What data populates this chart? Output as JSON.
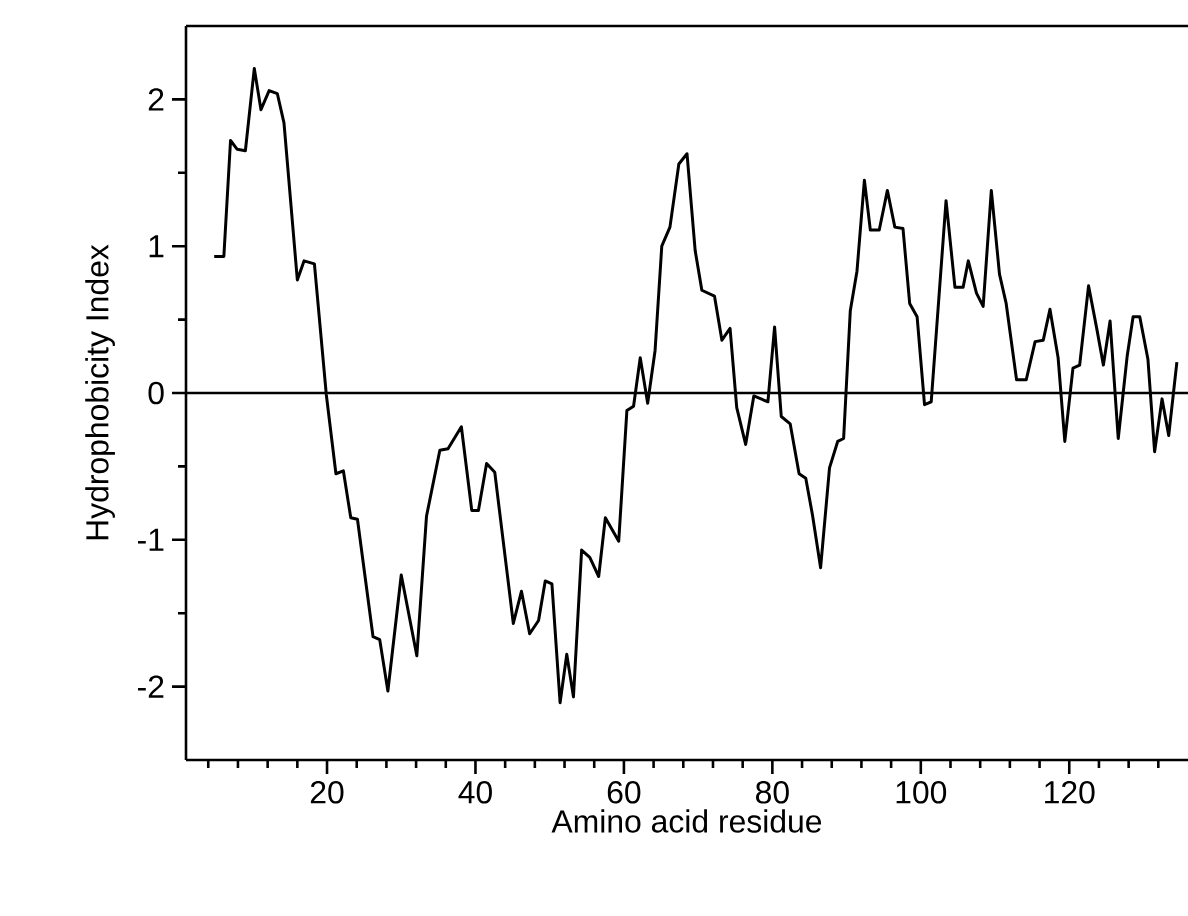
{
  "chart_data": {
    "type": "line",
    "xlabel": "Amino acid residue",
    "ylabel": "Hydrophobicity Index",
    "x": [
      4.8,
      6.1,
      7.0,
      7.9,
      9.0,
      10.2,
      11.1,
      12.2,
      13.3,
      14.2,
      16.0,
      16.9,
      18.3,
      19.9,
      21.2,
      22.2,
      23.2,
      24.1,
      26.2,
      27.1,
      28.2,
      30.0,
      32.1,
      33.4,
      35.2,
      36.3,
      38.1,
      39.5,
      40.4,
      41.5,
      42.6,
      45.1,
      46.2,
      47.3,
      48.5,
      49.4,
      50.3,
      51.4,
      52.3,
      53.2,
      54.3,
      55.4,
      56.6,
      57.5,
      59.3,
      60.4,
      61.3,
      62.2,
      63.2,
      64.2,
      65.1,
      66.2,
      67.4,
      68.5,
      69.6,
      70.5,
      72.2,
      73.2,
      74.3,
      75.2,
      76.4,
      77.5,
      79.4,
      80.3,
      81.2,
      82.4,
      83.6,
      84.5,
      85.4,
      86.5,
      87.7,
      88.8,
      89.6,
      90.5,
      91.4,
      92.4,
      93.2,
      94.4,
      95.5,
      96.5,
      97.6,
      98.5,
      99.5,
      100.5,
      101.4,
      103.4,
      104.6,
      105.7,
      106.4,
      107.5,
      108.4,
      109.5,
      110.6,
      111.5,
      112.9,
      114.2,
      115.4,
      116.5,
      117.4,
      118.5,
      119.4,
      120.5,
      121.4,
      122.6,
      123.7,
      124.6,
      125.5,
      126.6,
      127.8,
      128.6,
      129.5,
      130.6,
      131.5,
      132.5,
      133.4,
      134.5
    ],
    "series": [
      {
        "color": "#000000",
        "values": [
          0.93,
          0.93,
          1.72,
          1.66,
          1.65,
          2.21,
          1.93,
          2.06,
          2.04,
          1.84,
          0.77,
          0.9,
          0.88,
          -0.01,
          -0.55,
          -0.53,
          -0.85,
          -0.86,
          -1.66,
          -1.68,
          -2.03,
          -1.24,
          -1.79,
          -0.84,
          -0.39,
          -0.38,
          -0.23,
          -0.8,
          -0.8,
          -0.48,
          -0.54,
          -1.57,
          -1.35,
          -1.64,
          -1.55,
          -1.28,
          -1.3,
          -2.11,
          -1.78,
          -2.07,
          -1.07,
          -1.12,
          -1.25,
          -0.85,
          -1.01,
          -0.12,
          -0.09,
          0.24,
          -0.07,
          0.29,
          1.0,
          1.13,
          1.56,
          1.63,
          0.97,
          0.7,
          0.66,
          0.36,
          0.44,
          -0.1,
          -0.35,
          -0.02,
          -0.06,
          0.45,
          -0.16,
          -0.21,
          -0.55,
          -0.58,
          -0.83,
          -1.19,
          -0.51,
          -0.33,
          -0.31,
          0.56,
          0.83,
          1.45,
          1.11,
          1.11,
          1.38,
          1.13,
          1.12,
          0.61,
          0.52,
          -0.08,
          -0.06,
          1.31,
          0.72,
          0.72,
          0.9,
          0.68,
          0.59,
          1.38,
          0.81,
          0.61,
          0.09,
          0.09,
          0.35,
          0.36,
          0.57,
          0.24,
          -0.33,
          0.17,
          0.19,
          0.73,
          0.44,
          0.19,
          0.49,
          -0.31,
          0.25,
          0.52,
          0.52,
          0.23,
          -0.4,
          -0.04,
          -0.29,
          0.21
        ]
      }
    ],
    "xlim": [
      1,
      136
    ],
    "ylim": [
      -2.5,
      2.5
    ],
    "xticks": [
      {
        "value": 4,
        "label": null
      },
      {
        "value": 8,
        "label": null
      },
      {
        "value": 12,
        "label": null
      },
      {
        "value": 16,
        "label": null
      },
      20,
      {
        "value": 24,
        "label": null
      },
      {
        "value": 28,
        "label": null
      },
      {
        "value": 32,
        "label": null
      },
      {
        "value": 36,
        "label": null
      },
      40,
      {
        "value": 44,
        "label": null
      },
      {
        "value": 48,
        "label": null
      },
      {
        "value": 52,
        "label": null
      },
      {
        "value": 56,
        "label": null
      },
      60,
      {
        "value": 64,
        "label": null
      },
      {
        "value": 68,
        "label": null
      },
      {
        "value": 72,
        "label": null
      },
      {
        "value": 76,
        "label": null
      },
      80,
      {
        "value": 84,
        "label": null
      },
      {
        "value": 88,
        "label": null
      },
      {
        "value": 92,
        "label": null
      },
      {
        "value": 96,
        "label": null
      },
      100,
      {
        "value": 104,
        "label": null
      },
      {
        "value": 108,
        "label": null
      },
      {
        "value": 112,
        "label": null
      },
      {
        "value": 116,
        "label": null
      },
      120,
      {
        "value": 124,
        "label": null
      },
      {
        "value": 128,
        "label": null
      },
      {
        "value": 132,
        "label": null
      }
    ],
    "yticks": [
      -2,
      {
        "value": -1.5,
        "label": null
      },
      -1,
      {
        "value": -0.5,
        "label": null
      },
      0,
      {
        "value": 0.5,
        "label": null
      },
      1,
      {
        "value": 1.5,
        "label": null
      },
      2
    ],
    "ref_lines": [
      {
        "axis": "y",
        "value": 0,
        "color": "#000000"
      }
    ],
    "grid": false,
    "marker": "none",
    "line_style": "solid"
  }
}
